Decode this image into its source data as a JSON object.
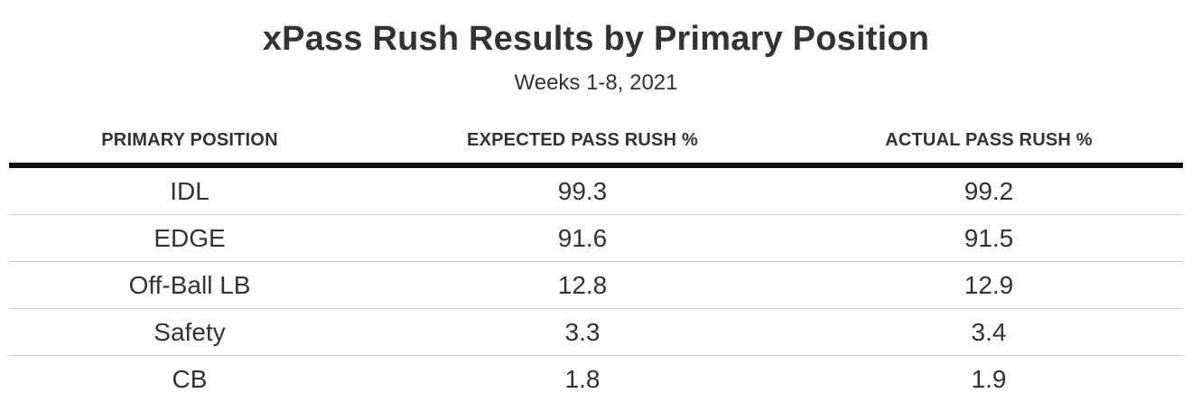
{
  "chart_data": {
    "type": "table",
    "title": "xPass Rush Results by Primary Position",
    "subtitle": "Weeks 1-8, 2021",
    "columns": [
      "PRIMARY POSITION",
      "EXPECTED PASS RUSH %",
      "ACTUAL PASS RUSH %"
    ],
    "rows": [
      [
        "IDL",
        "99.3",
        "99.2"
      ],
      [
        "EDGE",
        "91.6",
        "91.5"
      ],
      [
        "Off-Ball LB",
        "12.8",
        "12.9"
      ],
      [
        "Safety",
        "3.3",
        "3.4"
      ],
      [
        "CB",
        "1.8",
        "1.9"
      ]
    ]
  }
}
